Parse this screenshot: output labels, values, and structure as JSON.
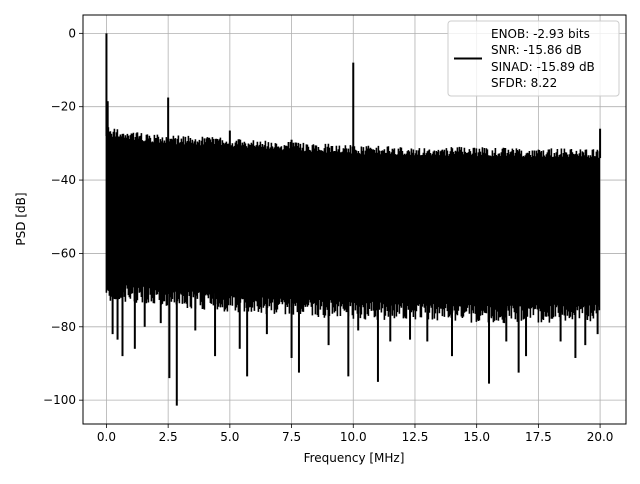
{
  "chart_data": {
    "type": "line",
    "xlabel": "Frequency [MHz]",
    "ylabel": "PSD [dB]",
    "xlim": [
      -0.95,
      21.05
    ],
    "ylim": [
      -106.5,
      5.0
    ],
    "x_ticks": [
      0.0,
      2.5,
      5.0,
      7.5,
      10.0,
      12.5,
      15.0,
      17.5,
      20.0
    ],
    "x_tick_labels": [
      "0.0",
      "2.5",
      "5.0",
      "7.5",
      "10.0",
      "12.5",
      "15.0",
      "17.5",
      "20.0"
    ],
    "y_ticks": [
      0,
      -20,
      -40,
      -60,
      -80,
      -100
    ],
    "y_tick_labels": [
      "0",
      "−20",
      "−40",
      "−60",
      "−80",
      "−100"
    ],
    "grid": true,
    "legend_position": "top-right",
    "series": [
      {
        "name": "",
        "color": "#000000",
        "noise_floor": {
          "x_range": [
            0.0,
            20.0
          ],
          "upper_envelope": [
            [
              0.0,
              -28
            ],
            [
              2.0,
              -30
            ],
            [
              5.0,
              -31
            ],
            [
              10.0,
              -33
            ],
            [
              15.0,
              -33.5
            ],
            [
              20.0,
              -34
            ]
          ],
          "lower_envelope": [
            [
              0.0,
              -68
            ],
            [
              5.0,
              -71
            ],
            [
              10.0,
              -73
            ],
            [
              15.0,
              -74
            ],
            [
              20.0,
              -74
            ]
          ]
        },
        "peaks": [
          {
            "x": 0.0,
            "y": 0.0
          },
          {
            "x": 0.05,
            "y": -18.5
          },
          {
            "x": 1.25,
            "y": -27.0
          },
          {
            "x": 2.5,
            "y": -17.5
          },
          {
            "x": 5.0,
            "y": -26.5
          },
          {
            "x": 7.5,
            "y": -29.0
          },
          {
            "x": 10.0,
            "y": -8.0
          },
          {
            "x": 20.0,
            "y": -26.0
          }
        ],
        "dips": [
          {
            "x": 0.15,
            "y": -68.5
          },
          {
            "x": 0.25,
            "y": -82.0
          },
          {
            "x": 0.45,
            "y": -83.5
          },
          {
            "x": 0.65,
            "y": -88.0
          },
          {
            "x": 1.15,
            "y": -86.0
          },
          {
            "x": 1.55,
            "y": -80.0
          },
          {
            "x": 2.2,
            "y": -79.0
          },
          {
            "x": 2.55,
            "y": -94.0
          },
          {
            "x": 2.85,
            "y": -101.5
          },
          {
            "x": 3.6,
            "y": -81.0
          },
          {
            "x": 4.4,
            "y": -88.0
          },
          {
            "x": 5.4,
            "y": -86.0
          },
          {
            "x": 5.7,
            "y": -93.5
          },
          {
            "x": 6.5,
            "y": -82.0
          },
          {
            "x": 7.5,
            "y": -88.5
          },
          {
            "x": 7.8,
            "y": -92.5
          },
          {
            "x": 9.0,
            "y": -85.0
          },
          {
            "x": 9.8,
            "y": -93.5
          },
          {
            "x": 10.2,
            "y": -81.0
          },
          {
            "x": 11.0,
            "y": -95.0
          },
          {
            "x": 11.5,
            "y": -84.0
          },
          {
            "x": 12.3,
            "y": -83.5
          },
          {
            "x": 13.0,
            "y": -84.0
          },
          {
            "x": 14.0,
            "y": -88.0
          },
          {
            "x": 15.5,
            "y": -95.5
          },
          {
            "x": 16.2,
            "y": -84.0
          },
          {
            "x": 16.7,
            "y": -92.5
          },
          {
            "x": 17.0,
            "y": -88.0
          },
          {
            "x": 18.4,
            "y": -84.0
          },
          {
            "x": 19.0,
            "y": -88.5
          },
          {
            "x": 19.4,
            "y": -85.0
          },
          {
            "x": 19.9,
            "y": -82.0
          }
        ]
      }
    ],
    "legend": {
      "text_lines": [
        "ENOB: -2.93 bits",
        "SNR: -15.86 dB",
        "SINAD: -15.89 dB",
        "SFDR: 8.22"
      ]
    }
  }
}
